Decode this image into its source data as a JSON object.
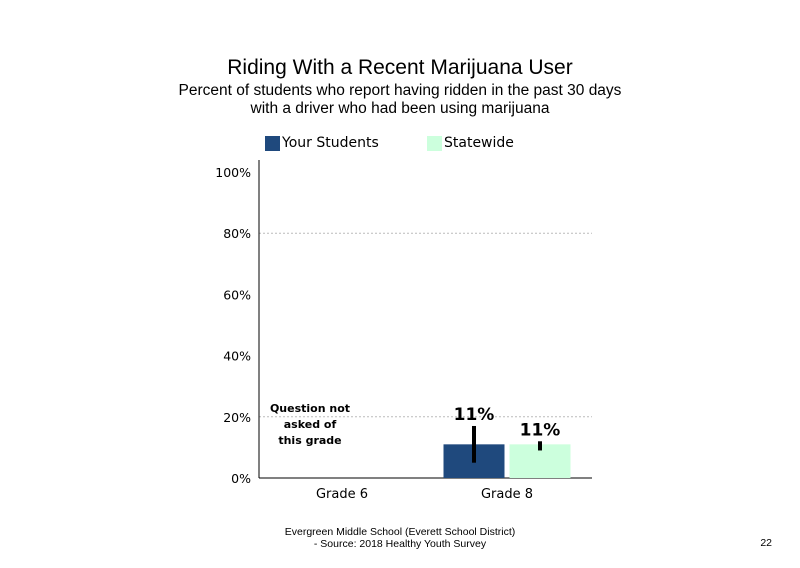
{
  "chart_data": {
    "type": "bar",
    "title": "Riding With a Recent Marijuana User",
    "subtitle_lines": [
      "Percent of students who report having ridden in the past 30 days",
      "with a driver who had been using marijuana"
    ],
    "categories": [
      "Grade 6",
      "Grade 8"
    ],
    "series": [
      {
        "name": "Your Students",
        "color": "#1f497d",
        "values": [
          null,
          11
        ],
        "labels": [
          "",
          "11%"
        ],
        "error": [
          null,
          [
            5,
            17
          ]
        ]
      },
      {
        "name": "Statewide",
        "color": "#ccffdd",
        "values": [
          null,
          11
        ],
        "labels": [
          "",
          "11%"
        ],
        "error": [
          null,
          [
            9,
            12
          ]
        ]
      }
    ],
    "y_ticks": [
      "0%",
      "20%",
      "40%",
      "60%",
      "80%",
      "100%"
    ],
    "ylim": [
      0,
      100
    ],
    "gridlines": [
      20,
      80
    ],
    "legend_position": "top",
    "annotations": [
      "Question not",
      "asked of",
      "this grade"
    ]
  },
  "footer": {
    "line1": "Evergreen Middle  School (Everett School District)",
    "line2": "- Source: 2018 Healthy  Youth Survey",
    "page_number": "22"
  }
}
